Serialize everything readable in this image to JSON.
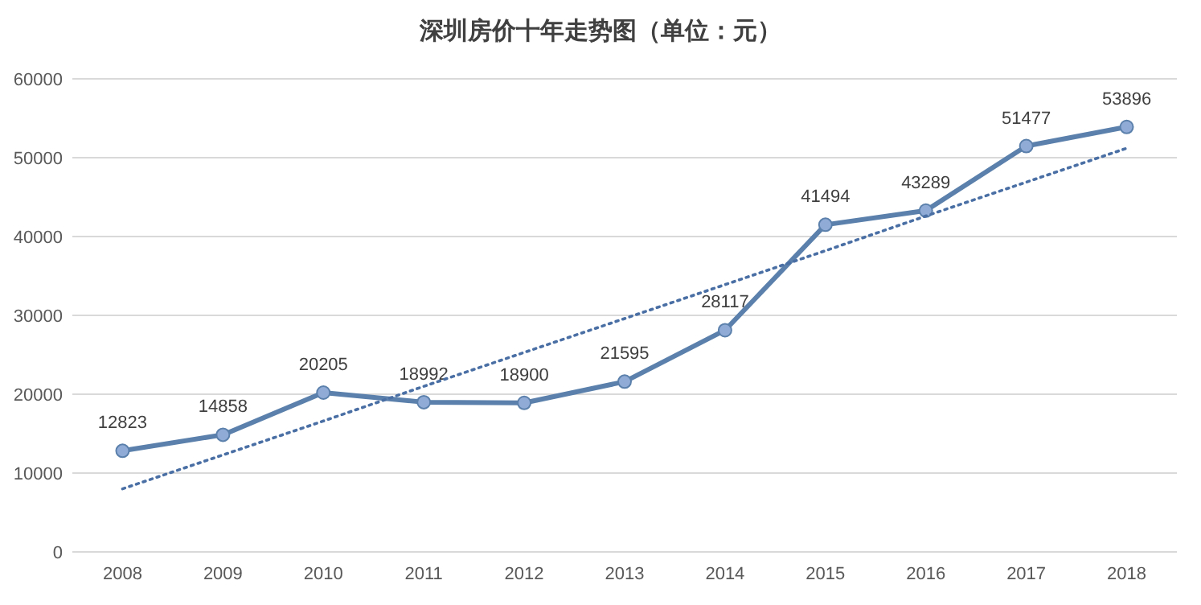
{
  "chart_data": {
    "type": "line",
    "title": "深圳房价十年走势图（单位：元）",
    "categories": [
      "2008",
      "2009",
      "2010",
      "2011",
      "2012",
      "2013",
      "2014",
      "2015",
      "2016",
      "2017",
      "2018"
    ],
    "series": [
      {
        "color": "#5b80ab",
        "marker": "circle",
        "line_style": "solid",
        "values": [
          12823,
          14858,
          20205,
          18992,
          18900,
          21595,
          28117,
          41494,
          43289,
          51477,
          53896
        ],
        "value_labels": [
          "12823",
          "14858",
          "20205",
          "18992",
          "18900",
          "21595",
          "28117",
          "41494",
          "43289",
          "51477",
          "53896"
        ]
      },
      {
        "type": "line",
        "color": "#4a6fa5",
        "marker": "none",
        "line_style": "dotted",
        "values": [
          8000,
          12300,
          16600,
          21000,
          25300,
          29600,
          33900,
          38200,
          42600,
          46900,
          51200
        ]
      }
    ],
    "ylim": [
      0,
      60000
    ],
    "yticks": [
      0,
      10000,
      20000,
      30000,
      40000,
      50000,
      60000
    ],
    "grid": "y"
  }
}
